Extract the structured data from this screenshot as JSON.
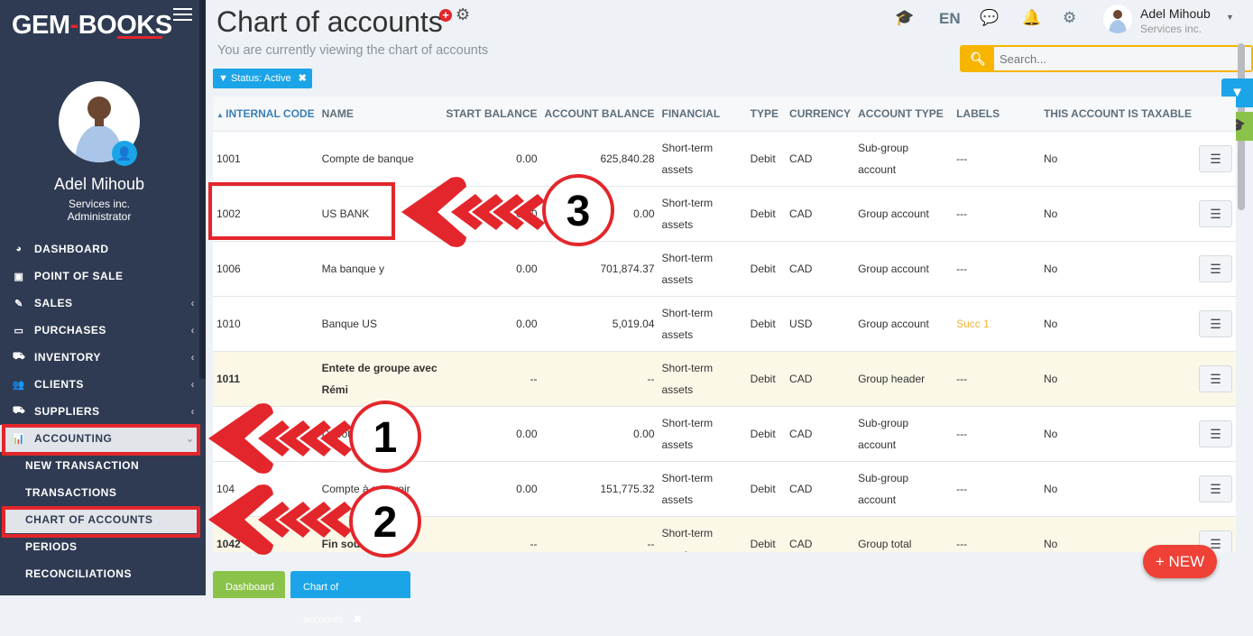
{
  "brand": {
    "logo_left": "GEM",
    "logo_dash": "-",
    "logo_right": "BOOKS",
    "accent": "#e3262b"
  },
  "user": {
    "name": "Adel Mihoub",
    "company": "Services inc.",
    "role": "Administrator"
  },
  "sidebar": {
    "items": [
      {
        "label": "DASHBOARD",
        "icon": "dashboard-icon",
        "glyph": "◕"
      },
      {
        "label": "POINT OF SALE",
        "icon": "money-icon",
        "glyph": "▣"
      },
      {
        "label": "SALES",
        "icon": "edit-icon",
        "glyph": "✎",
        "chevron": "‹"
      },
      {
        "label": "PURCHASES",
        "icon": "credit-card-icon",
        "glyph": "▭",
        "chevron": "‹"
      },
      {
        "label": "INVENTORY",
        "icon": "cart-icon",
        "glyph": "⛟",
        "chevron": "‹"
      },
      {
        "label": "CLIENTS",
        "icon": "users-icon",
        "glyph": "👥",
        "chevron": "‹"
      },
      {
        "label": "SUPPLIERS",
        "icon": "truck-icon",
        "glyph": "⛟",
        "chevron": "‹"
      },
      {
        "label": "ACCOUNTING",
        "icon": "bar-chart-icon",
        "glyph": "📊",
        "chevron": "⌄",
        "active": true
      }
    ],
    "subitems": [
      {
        "label": "NEW TRANSACTION"
      },
      {
        "label": "TRANSACTIONS"
      },
      {
        "label": "CHART OF ACCOUNTS",
        "active": true
      },
      {
        "label": "PERIODS"
      },
      {
        "label": "RECONCILIATIONS"
      }
    ]
  },
  "header": {
    "title": "Chart of accounts",
    "subtitle": "You are currently viewing the chart of accounts",
    "language": "EN",
    "filter_chip": "Status: Active",
    "search_placeholder": "Search..."
  },
  "table": {
    "columns": [
      "INTERNAL CODE",
      "NAME",
      "START BALANCE",
      "ACCOUNT BALANCE",
      "FINANCIAL",
      "TYPE",
      "CURRENCY",
      "ACCOUNT TYPE",
      "LABELS",
      "THIS ACCOUNT IS TAXABLE"
    ],
    "rows": [
      {
        "code": "1001",
        "name": "Compte de banque",
        "start": "0.00",
        "balance": "625,840.28",
        "financial": "Short-term assets",
        "type": "Debit",
        "currency": "CAD",
        "account_type": "Sub-group account",
        "labels": "---",
        "taxable": "No"
      },
      {
        "code": "1002",
        "name": "US BANK",
        "start": "0.00",
        "balance": "0.00",
        "financial": "Short-term assets",
        "type": "Debit",
        "currency": "CAD",
        "account_type": "Group account",
        "labels": "---",
        "taxable": "No"
      },
      {
        "code": "1006",
        "name": "Ma banque y",
        "start": "0.00",
        "balance": "701,874.37",
        "financial": "Short-term assets",
        "type": "Debit",
        "currency": "CAD",
        "account_type": "Group account",
        "labels": "---",
        "taxable": "No"
      },
      {
        "code": "1010",
        "name": "Banque US",
        "start": "0.00",
        "balance": "5,019.04",
        "financial": "Short-term assets",
        "type": "Debit",
        "currency": "USD",
        "account_type": "Group account",
        "labels": "Succ 1",
        "labels_warn": true,
        "taxable": "No"
      },
      {
        "code": "1011",
        "name": "Entete de groupe avec Rémi",
        "start": "--",
        "balance": "--",
        "financial": "Short-term assets",
        "type": "Debit",
        "currency": "CAD",
        "account_type": "Group header",
        "labels": "---",
        "taxable": "No",
        "highlight": true
      },
      {
        "code": "",
        "name": "Dépôt 23",
        "start": "0.00",
        "balance": "0.00",
        "financial": "Short-term assets",
        "type": "Debit",
        "currency": "CAD",
        "account_type": "Sub-group account",
        "labels": "---",
        "taxable": "No"
      },
      {
        "code": "104",
        "name": "Compte à recevoir",
        "start": "0.00",
        "balance": "151,775.32",
        "financial": "Short-term assets",
        "type": "Debit",
        "currency": "CAD",
        "account_type": "Sub-group account",
        "labels": "---",
        "taxable": "No"
      },
      {
        "code": "1042",
        "name": "Fin sous",
        "start": "--",
        "balance": "--",
        "financial": "Short-term assets",
        "type": "Debit",
        "currency": "CAD",
        "account_type": "Group total",
        "labels": "---",
        "taxable": "No",
        "highlight": true
      }
    ]
  },
  "bottom_tabs": [
    {
      "label": "Dashboard",
      "color": "#8bc34a"
    },
    {
      "label": "Chart of accounts",
      "color": "#1ba5e8",
      "closable": true
    }
  ],
  "new_button": "+ NEW",
  "annotations": {
    "steps": [
      "1",
      "2",
      "3"
    ],
    "color": "#e3262b"
  }
}
